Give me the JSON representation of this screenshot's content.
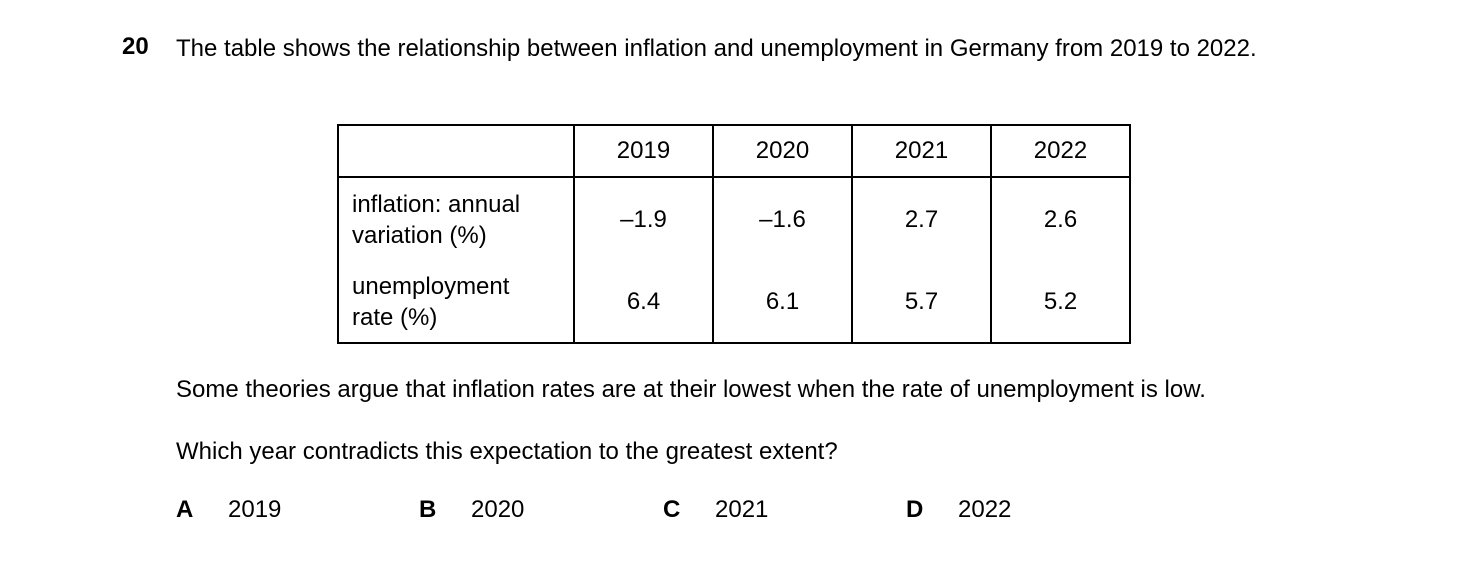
{
  "question": {
    "number": "20",
    "stem": "The table shows the relationship between inflation and unemployment in Germany from 2019 to 2022."
  },
  "table": {
    "columns": [
      "2019",
      "2020",
      "2021",
      "2022"
    ],
    "rows": [
      {
        "label_line1": "inflation: annual",
        "label_line2": "variation (%)",
        "values": [
          "–1.9",
          "–1.6",
          "2.7",
          "2.6"
        ]
      },
      {
        "label_line1": "unemployment",
        "label_line2": "rate (%)",
        "values": [
          "6.4",
          "6.1",
          "5.7",
          "5.2"
        ]
      }
    ]
  },
  "paragraph1": "Some theories argue that inflation rates are at their lowest when the rate of unemployment is low.",
  "paragraph2": "Which year contradicts this expectation to the greatest extent?",
  "options": [
    {
      "letter": "A",
      "text": "2019"
    },
    {
      "letter": "B",
      "text": "2020"
    },
    {
      "letter": "C",
      "text": "2021"
    },
    {
      "letter": "D",
      "text": "2022"
    }
  ]
}
